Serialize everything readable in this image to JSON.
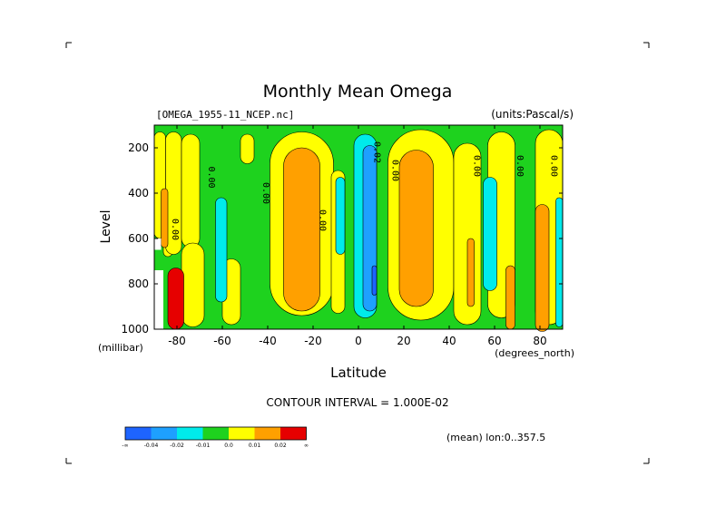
{
  "chart_data": {
    "type": "contour",
    "title": "Monthly Mean Omega",
    "source_label": "[OMEGA_1955-11_NCEP.nc]",
    "units_label": "(units:Pascal/s)",
    "xlabel": "Latitude",
    "xunits": "(degrees_north)",
    "ylabel": "Level",
    "yunits": "(millibar)",
    "xlim": [
      -90,
      90
    ],
    "ylim": [
      1000,
      100
    ],
    "y_reversed": true,
    "x_ticks": [
      {
        "value": -80,
        "label": "-80"
      },
      {
        "value": -60,
        "label": "-60"
      },
      {
        "value": -40,
        "label": "-40"
      },
      {
        "value": -20,
        "label": "-20"
      },
      {
        "value": 0,
        "label": "0"
      },
      {
        "value": 20,
        "label": "20"
      },
      {
        "value": 40,
        "label": "40"
      },
      {
        "value": 60,
        "label": "60"
      },
      {
        "value": 80,
        "label": "80"
      }
    ],
    "y_ticks": [
      {
        "value": 200,
        "label": "200"
      },
      {
        "value": 400,
        "label": "400"
      },
      {
        "value": 600,
        "label": "600"
      },
      {
        "value": 800,
        "label": "800"
      },
      {
        "value": 1000,
        "label": "1000"
      }
    ],
    "contour_interval_label": "CONTOUR INTERVAL = 1.000E-02",
    "mean_label": "(mean) lon:0..357.5",
    "contour_labels": [
      {
        "text": "0.00",
        "lat": -82,
        "lev": 560
      },
      {
        "text": "0.00",
        "lat": -66,
        "lev": 330
      },
      {
        "text": "0.00",
        "lat": -42,
        "lev": 400
      },
      {
        "text": "0.00",
        "lat": -17,
        "lev": 520
      },
      {
        "text": "0.02",
        "lat": 7,
        "lev": 220
      },
      {
        "text": "0.00",
        "lat": 15,
        "lev": 300
      },
      {
        "text": "0.00",
        "lat": 51,
        "lev": 280
      },
      {
        "text": "0.00",
        "lat": 70,
        "lev": 280
      },
      {
        "text": "0.00",
        "lat": 85,
        "lev": 280
      }
    ],
    "color_scale": [
      {
        "label": "-∞",
        "color": "#1e64ff"
      },
      {
        "label": "-0.04",
        "color": "#1ea0ff"
      },
      {
        "label": "-0.02",
        "color": "#00ebeb"
      },
      {
        "label": "-0.01",
        "color": "#1ed21e"
      },
      {
        "label": "0.0",
        "color": "#ffff00"
      },
      {
        "label": "0.01",
        "color": "#ffa000"
      },
      {
        "label": "0.02",
        "color": "#e60000"
      },
      {
        "label": "∞",
        "color": ""
      }
    ],
    "background_color": "#1ed21e",
    "regions": [
      {
        "color": "#ffff00",
        "lat": -90,
        "lev": 130,
        "w": 5,
        "h": 470
      },
      {
        "color": "#ffff00",
        "lat": -86,
        "lev": 520,
        "w": 4,
        "h": 160
      },
      {
        "color": "#ffff00",
        "lat": -85,
        "lev": 130,
        "w": 7,
        "h": 540
      },
      {
        "color": "#ffff00",
        "lat": -78,
        "lev": 140,
        "w": 8,
        "h": 500
      },
      {
        "color": "#ffff00",
        "lat": -78,
        "lev": 620,
        "w": 10,
        "h": 370
      },
      {
        "color": "#ffff00",
        "lat": -60,
        "lev": 690,
        "w": 8,
        "h": 290
      },
      {
        "color": "#ffff00",
        "lat": -52,
        "lev": 140,
        "w": 6,
        "h": 130
      },
      {
        "color": "#ffff00",
        "lat": -39,
        "lev": 130,
        "w": 28,
        "h": 810
      },
      {
        "color": "#ffff00",
        "lat": -12,
        "lev": 300,
        "w": 6,
        "h": 630
      },
      {
        "color": "#ffff00",
        "lat": 13,
        "lev": 120,
        "w": 29,
        "h": 840
      },
      {
        "color": "#ffff00",
        "lat": 42,
        "lev": 180,
        "w": 12,
        "h": 800
      },
      {
        "color": "#ffff00",
        "lat": 57,
        "lev": 130,
        "w": 12,
        "h": 820
      },
      {
        "color": "#ffff00",
        "lat": 78,
        "lev": 120,
        "w": 12,
        "h": 860
      },
      {
        "color": "#00ebeb",
        "lat": -63,
        "lev": 420,
        "w": 5,
        "h": 460
      },
      {
        "color": "#00ebeb",
        "lat": -10,
        "lev": 330,
        "w": 4,
        "h": 340
      },
      {
        "color": "#00ebeb",
        "lat": -2,
        "lev": 140,
        "w": 10,
        "h": 810
      },
      {
        "color": "#00ebeb",
        "lat": 55,
        "lev": 330,
        "w": 6,
        "h": 500
      },
      {
        "color": "#00ebeb",
        "lat": 87,
        "lev": 420,
        "w": 3,
        "h": 570
      },
      {
        "color": "#1ea0ff",
        "lat": 2,
        "lev": 190,
        "w": 6,
        "h": 730
      },
      {
        "color": "#1e64ff",
        "lat": 6,
        "lev": 720,
        "w": 2,
        "h": 130
      },
      {
        "color": "#ffa000",
        "lat": -87,
        "lev": 380,
        "w": 3,
        "h": 260
      },
      {
        "color": "#ffa000",
        "lat": -33,
        "lev": 200,
        "w": 16,
        "h": 720
      },
      {
        "color": "#ffa000",
        "lat": 18,
        "lev": 210,
        "w": 15,
        "h": 690
      },
      {
        "color": "#ffa000",
        "lat": 48,
        "lev": 600,
        "w": 3,
        "h": 300
      },
      {
        "color": "#ffa000",
        "lat": 65,
        "lev": 720,
        "w": 4,
        "h": 280
      },
      {
        "color": "#ffa000",
        "lat": 78,
        "lev": 450,
        "w": 6,
        "h": 560
      },
      {
        "color": "#e60000",
        "lat": -84,
        "lev": 730,
        "w": 7,
        "h": 270
      }
    ],
    "white_regions": [
      {
        "lat": -90,
        "lev": 600,
        "w": 3,
        "h": 50
      },
      {
        "lat": -90,
        "lev": 740,
        "w": 4,
        "h": 260
      }
    ]
  }
}
